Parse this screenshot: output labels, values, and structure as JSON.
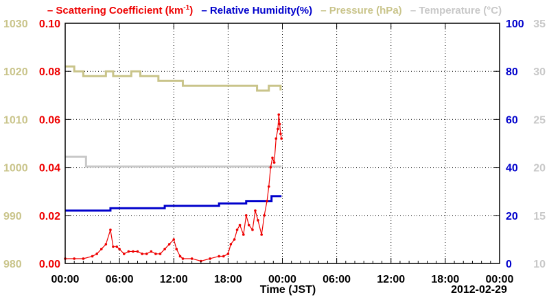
{
  "legend": {
    "scattering": "– Scattering Coefficient (km",
    "scattering_sup": "-1",
    "scattering_close": ")",
    "humidity": "– Relative Humidity(%)",
    "pressure": "– Pressure (hPa)",
    "temperature": "– Temperature (°C)"
  },
  "colors": {
    "scattering": "#ee0000",
    "humidity": "#0000cc",
    "pressure": "#c9c48a",
    "temperature": "#c8c8c8",
    "left_axis_pressure": "#c9c48a",
    "left_axis_scattering": "#ee0000",
    "right_axis_humidity": "#0000cc",
    "right_axis_temperature": "#c8c8c8"
  },
  "chart_data": {
    "type": "line",
    "xlabel": "Time (JST)",
    "date_label": "2012-02-29",
    "x_ticks": [
      "00:00",
      "06:00",
      "12:00",
      "18:00",
      "00:00",
      "06:00",
      "12:00",
      "18:00",
      "00:00"
    ],
    "x_range_hours": [
      0,
      48
    ],
    "grid": true,
    "axes": {
      "pressure": {
        "ticks": [
          980,
          990,
          1000,
          1010,
          1020,
          1030
        ],
        "range": [
          980,
          1030
        ]
      },
      "scattering": {
        "ticks": [
          "0.00",
          "0.02",
          "0.04",
          "0.06",
          "0.08",
          "0.10"
        ],
        "range": [
          0,
          0.1
        ]
      },
      "humidity": {
        "ticks": [
          0,
          20,
          40,
          60,
          80,
          100
        ],
        "range": [
          0,
          100
        ]
      },
      "temperature": {
        "ticks": [
          10,
          15,
          20,
          25,
          30,
          35
        ],
        "range": [
          10,
          35
        ]
      }
    },
    "series": [
      {
        "name": "Pressure (hPa)",
        "axis": "pressure",
        "style": "step",
        "points": [
          [
            0,
            1021
          ],
          [
            1,
            1020
          ],
          [
            2,
            1019
          ],
          [
            4,
            1019
          ],
          [
            4.5,
            1020
          ],
          [
            5.3,
            1019
          ],
          [
            7.3,
            1020
          ],
          [
            8.3,
            1019
          ],
          [
            9.3,
            1019
          ],
          [
            10.3,
            1018
          ],
          [
            12.3,
            1018
          ],
          [
            13,
            1017
          ],
          [
            19,
            1017
          ],
          [
            21,
            1017
          ],
          [
            21.2,
            1016
          ],
          [
            22.3,
            1016
          ],
          [
            22.5,
            1017
          ],
          [
            23.8,
            1016
          ]
        ]
      },
      {
        "name": "Temperature (°C)",
        "axis": "temperature",
        "style": "step",
        "points": [
          [
            0,
            21.1
          ],
          [
            2.3,
            21.1
          ],
          [
            2.3,
            20.1
          ],
          [
            23.9,
            20.1
          ]
        ]
      },
      {
        "name": "Relative Humidity(%)",
        "axis": "humidity",
        "style": "step",
        "points": [
          [
            0,
            22
          ],
          [
            5,
            22
          ],
          [
            5,
            23
          ],
          [
            11,
            23
          ],
          [
            11,
            24
          ],
          [
            17,
            24
          ],
          [
            17,
            25
          ],
          [
            20,
            25
          ],
          [
            20,
            26
          ],
          [
            22.8,
            26
          ],
          [
            22.8,
            28
          ],
          [
            23.9,
            28
          ]
        ]
      },
      {
        "name": "Scattering Coefficient (km-1)",
        "axis": "scattering",
        "style": "line",
        "points": [
          [
            0,
            0.002
          ],
          [
            1,
            0.002
          ],
          [
            2,
            0.002
          ],
          [
            3,
            0.003
          ],
          [
            3.5,
            0.004
          ],
          [
            4,
            0.006
          ],
          [
            4.5,
            0.008
          ],
          [
            5,
            0.014
          ],
          [
            5.3,
            0.007
          ],
          [
            5.7,
            0.007
          ],
          [
            6,
            0.006
          ],
          [
            6.5,
            0.004
          ],
          [
            7,
            0.005
          ],
          [
            7.5,
            0.005
          ],
          [
            8,
            0.005
          ],
          [
            8.5,
            0.004
          ],
          [
            9,
            0.004
          ],
          [
            9.5,
            0.005
          ],
          [
            10,
            0.004
          ],
          [
            10.5,
            0.004
          ],
          [
            11,
            0.006
          ],
          [
            11.5,
            0.008
          ],
          [
            12,
            0.01
          ],
          [
            12.3,
            0.006
          ],
          [
            12.7,
            0.003
          ],
          [
            13,
            0.002
          ],
          [
            14,
            0.002
          ],
          [
            15,
            0.001
          ],
          [
            16,
            0.002
          ],
          [
            17,
            0.003
          ],
          [
            17.5,
            0.003
          ],
          [
            18,
            0.004
          ],
          [
            18.3,
            0.008
          ],
          [
            18.7,
            0.01
          ],
          [
            19,
            0.014
          ],
          [
            19.3,
            0.016
          ],
          [
            19.7,
            0.012
          ],
          [
            20,
            0.02
          ],
          [
            20.3,
            0.016
          ],
          [
            20.7,
            0.014
          ],
          [
            21,
            0.022
          ],
          [
            21.3,
            0.018
          ],
          [
            21.7,
            0.012
          ],
          [
            22,
            0.02
          ],
          [
            22.3,
            0.026
          ],
          [
            22.5,
            0.032
          ],
          [
            22.7,
            0.04
          ],
          [
            22.9,
            0.044
          ],
          [
            23.1,
            0.042
          ],
          [
            23.3,
            0.052
          ],
          [
            23.5,
            0.056
          ],
          [
            23.6,
            0.062
          ],
          [
            23.7,
            0.058
          ],
          [
            23.8,
            0.054
          ],
          [
            23.9,
            0.052
          ]
        ]
      }
    ]
  }
}
